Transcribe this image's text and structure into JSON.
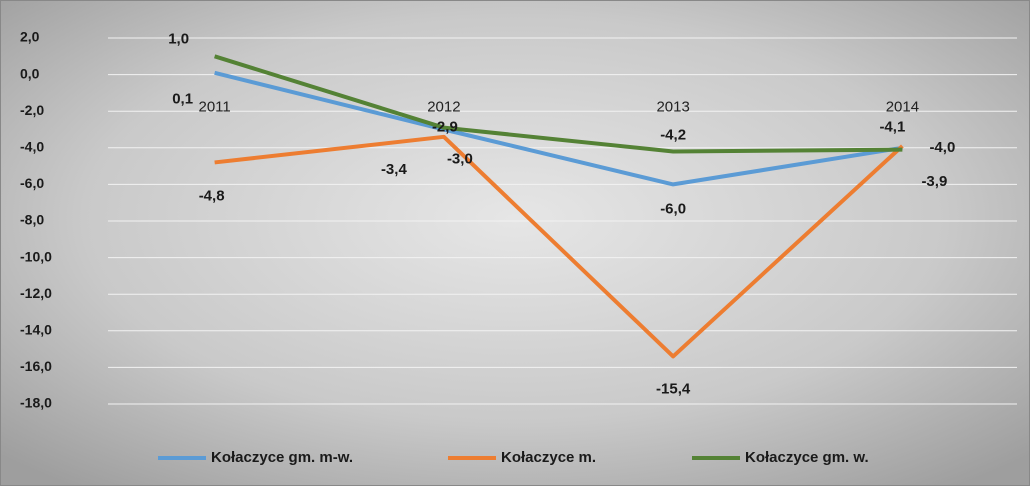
{
  "chart_data": {
    "type": "line",
    "categories": [
      "2011",
      "2012",
      "2013",
      "2014"
    ],
    "series": [
      {
        "name": "Kołaczyce gm. m-w.",
        "color": "#5b9bd5",
        "values": [
          0.1,
          -3.0,
          -6.0,
          -4.0
        ],
        "value_labels": [
          "0,1",
          "-3,0",
          "-6,0",
          "-4,0"
        ]
      },
      {
        "name": "Kołaczyce m.",
        "color": "#ed7d31",
        "values": [
          -4.8,
          -3.4,
          -15.4,
          -3.9
        ],
        "value_labels": [
          "-4,8",
          "-3,4",
          "-15,4",
          "-3,9"
        ]
      },
      {
        "name": "Kołaczyce gm. w.",
        "color": "#548235",
        "values": [
          1.0,
          -2.9,
          -4.2,
          -4.1
        ],
        "value_labels": [
          "1,0",
          "-2,9",
          "-4,2",
          "-4,1"
        ]
      }
    ],
    "ylim": [
      -18,
      2
    ],
    "yticks": [
      {
        "value": 2,
        "label": "2,0"
      },
      {
        "value": 0,
        "label": "0,0"
      },
      {
        "value": -2,
        "label": "-2,0"
      },
      {
        "value": -4,
        "label": "-4,0"
      },
      {
        "value": -6,
        "label": "-6,0"
      },
      {
        "value": -8,
        "label": "-8,0"
      },
      {
        "value": -10,
        "label": "-10,0"
      },
      {
        "value": -12,
        "label": "-12,0"
      },
      {
        "value": -14,
        "label": "-14,0"
      },
      {
        "value": -16,
        "label": "-16,0"
      },
      {
        "value": -18,
        "label": "-18,0"
      }
    ],
    "grid": true,
    "legend": "bottom"
  }
}
